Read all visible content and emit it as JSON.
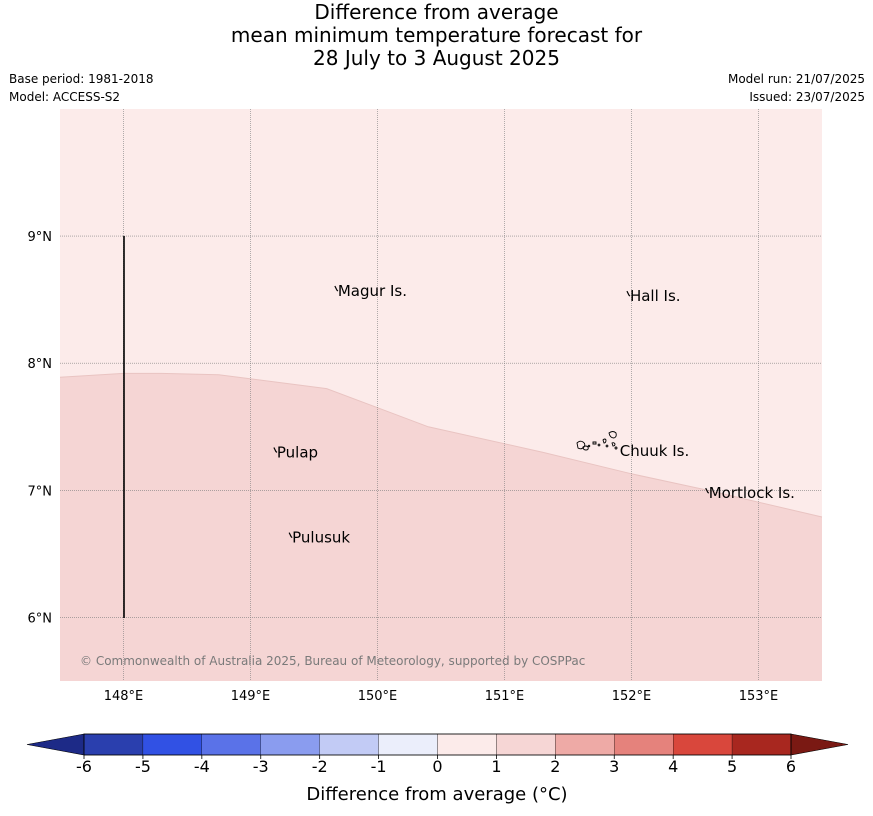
{
  "title": {
    "line1": "Difference from average",
    "line2": "mean minimum temperature forecast for",
    "line3": "28 July to 3 August 2025"
  },
  "meta": {
    "base_period": "Base period: 1981-2018",
    "model": "Model: ACCESS-S2",
    "model_run": "Model run: 21/07/2025",
    "issued": "Issued: 23/07/2025"
  },
  "map": {
    "lat_labels": [
      "9°N",
      "8°N",
      "7°N",
      "6°N"
    ],
    "lon_labels": [
      "148°E",
      "149°E",
      "150°E",
      "151°E",
      "152°E",
      "153°E"
    ],
    "lat_values": [
      9,
      8,
      7,
      6
    ],
    "lon_values": [
      148,
      149,
      150,
      151,
      152,
      153
    ],
    "extent": {
      "lon": [
        147.5,
        153.5
      ],
      "lat": [
        5.5,
        10.0
      ]
    },
    "places": [
      {
        "name": "Magur Is.",
        "lon": 149.68,
        "lat": 8.56
      },
      {
        "name": "Hall Is.",
        "lon": 151.98,
        "lat": 8.52
      },
      {
        "name": "Pulap",
        "lon": 149.2,
        "lat": 7.29
      },
      {
        "name": "Chuuk Is.",
        "lon": 151.9,
        "lat": 7.3
      },
      {
        "name": "Mortlock Is.",
        "lon": 152.6,
        "lat": 6.97
      },
      {
        "name": "Pulusuk",
        "lon": 149.32,
        "lat": 6.62
      }
    ],
    "anomaly_zones": [
      {
        "range": "0 to 1",
        "area": "north"
      },
      {
        "range": "1 to 2",
        "area": "south"
      }
    ],
    "copyright": "© Commonwealth of Australia 2025, Bureau of Meteorology, supported by COSPPac"
  },
  "colorbar": {
    "ticks": [
      "-6",
      "-5",
      "-4",
      "-3",
      "-2",
      "-1",
      "0",
      "1",
      "2",
      "3",
      "4",
      "5",
      "6"
    ],
    "colors": [
      "#1d2a87",
      "#2a3fae",
      "#3151e4",
      "#5a72e8",
      "#8a9cef",
      "#c2cbf5",
      "#ebeefb",
      "#fcebea",
      "#f6d6d5",
      "#eeaaa6",
      "#e5827c",
      "#d9473c",
      "#a8271f",
      "#7a1913"
    ],
    "label": "Difference from average (°C)"
  },
  "colors": {
    "zone_0_1": "#fcebea",
    "zone_1_2": "#f5d5d4",
    "grid": "#7f7f7f",
    "boundary": "#e9c4c2"
  }
}
